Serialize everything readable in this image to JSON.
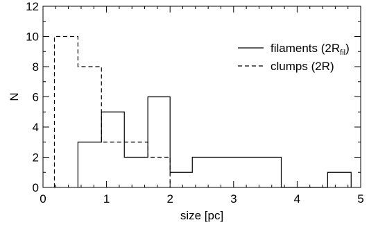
{
  "chart_data": {
    "type": "histogram",
    "title": "",
    "xlabel": "size [pc]",
    "ylabel": "N",
    "xlim": [
      0,
      5
    ],
    "ylim": [
      0,
      12
    ],
    "x_ticks": [
      0,
      1,
      2,
      3,
      4,
      5
    ],
    "y_ticks": [
      0,
      2,
      4,
      6,
      8,
      10,
      12
    ],
    "grid": false,
    "legend_position": "top-right",
    "series": [
      {
        "name": "filaments (2R_fil)",
        "style": "solid",
        "color": "#000000",
        "bins": [
          {
            "x0": 0.55,
            "x1": 0.92,
            "count": 3
          },
          {
            "x0": 0.92,
            "x1": 1.28,
            "count": 5
          },
          {
            "x0": 1.28,
            "x1": 1.65,
            "count": 2
          },
          {
            "x0": 1.65,
            "x1": 2.0,
            "count": 6
          },
          {
            "x0": 2.0,
            "x1": 2.35,
            "count": 1
          },
          {
            "x0": 2.35,
            "x1": 3.75,
            "count": 2
          },
          {
            "x0": 3.75,
            "x1": 4.48,
            "count": 0
          },
          {
            "x0": 4.48,
            "x1": 4.85,
            "count": 1
          }
        ]
      },
      {
        "name": "clumps (2R)",
        "style": "dashed",
        "color": "#000000",
        "bins": [
          {
            "x0": 0.18,
            "x1": 0.55,
            "count": 10
          },
          {
            "x0": 0.55,
            "x1": 0.92,
            "count": 8
          },
          {
            "x0": 0.92,
            "x1": 1.28,
            "count": 3
          },
          {
            "x0": 1.28,
            "x1": 1.65,
            "count": 3
          },
          {
            "x0": 1.65,
            "x1": 2.0,
            "count": 2
          }
        ]
      }
    ],
    "legend": [
      {
        "text": "filaments (2R",
        "sub": "fil",
        "suffix": ")",
        "style": "solid"
      },
      {
        "text": "clumps (2R)",
        "sub": "",
        "suffix": "",
        "style": "dashed"
      }
    ]
  }
}
